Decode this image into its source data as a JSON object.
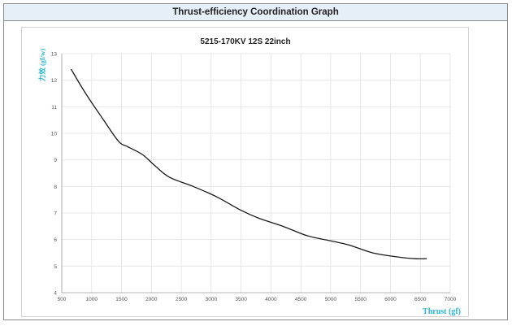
{
  "header": {
    "title": "Thrust-efficiency Coordination Graph"
  },
  "colors": {
    "axis_label": "#29b6d8",
    "line": "#1a1a1a",
    "header_bg": "#e6eef8"
  },
  "chart_data": {
    "type": "line",
    "title": "5215-170KV 12S  22inch",
    "xlabel": "Thrust (gf)",
    "ylabel": "力效 (gf/w)",
    "xlim": [
      500,
      7000
    ],
    "ylim": [
      4,
      13
    ],
    "xticks": [
      500,
      1000,
      1500,
      2000,
      2500,
      3000,
      3500,
      4000,
      4500,
      5000,
      5500,
      6000,
      6500,
      7000
    ],
    "yticks": [
      4,
      5,
      6,
      7,
      8,
      9,
      10,
      11,
      12,
      13
    ],
    "grid": true,
    "series": [
      {
        "x": [
          660,
          900,
          1200,
          1450,
          1600,
          1850,
          2050,
          2300,
          2700,
          3100,
          3500,
          3800,
          4200,
          4600,
          5000,
          5300,
          5700,
          6100,
          6400,
          6600
        ],
        "y": [
          12.4,
          11.5,
          10.5,
          9.7,
          9.5,
          9.2,
          8.8,
          8.35,
          8.0,
          7.6,
          7.1,
          6.8,
          6.5,
          6.15,
          5.95,
          5.8,
          5.5,
          5.35,
          5.28,
          5.28
        ]
      }
    ]
  }
}
